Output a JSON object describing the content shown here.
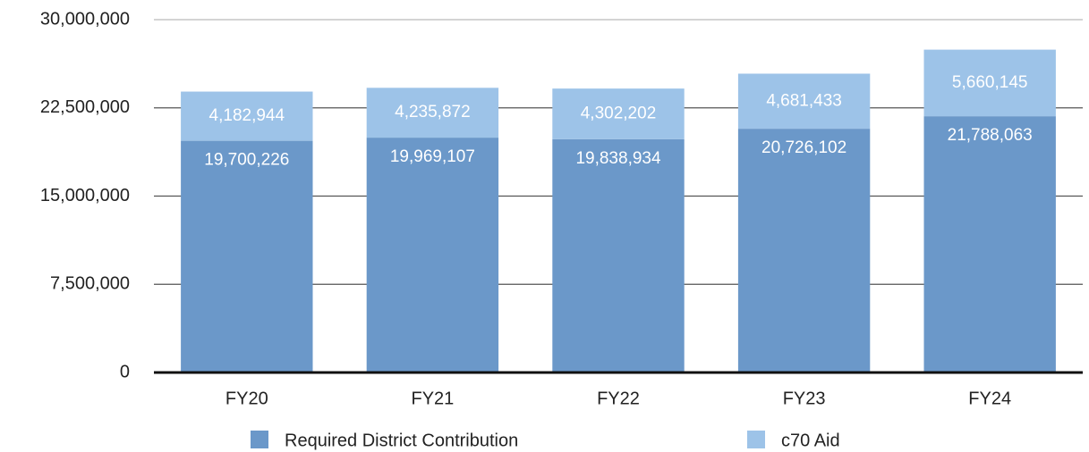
{
  "chart_data": {
    "type": "bar",
    "stacked": true,
    "categories": [
      "FY20",
      "FY21",
      "FY22",
      "FY23",
      "FY24"
    ],
    "series": [
      {
        "name": "Required District Contribution",
        "color": "#6b98c9",
        "values": [
          19700226,
          19969107,
          19838934,
          20726102,
          21788063
        ],
        "value_labels": [
          "19,700,226",
          "19,969,107",
          "19,838,934",
          "20,726,102",
          "21,788,063"
        ]
      },
      {
        "name": "c70 Aid",
        "color": "#9dc3e8",
        "values": [
          4182944,
          4235872,
          4302202,
          4681433,
          5660145
        ],
        "value_labels": [
          "4,182,944",
          "4,235,872",
          "4,302,202",
          "4,681,433",
          "5,660,145"
        ]
      }
    ],
    "ylim": [
      0,
      30000000
    ],
    "yticks": [
      0,
      {
        "value": 7500000,
        "label": "7,500,000"
      },
      {
        "value": 15000000,
        "label": "15,000,000"
      },
      {
        "value": 22500000,
        "label": "22,500,000"
      },
      {
        "value": 30000000,
        "label": "30,000,000"
      }
    ],
    "grid": true,
    "legend": "bottom"
  }
}
